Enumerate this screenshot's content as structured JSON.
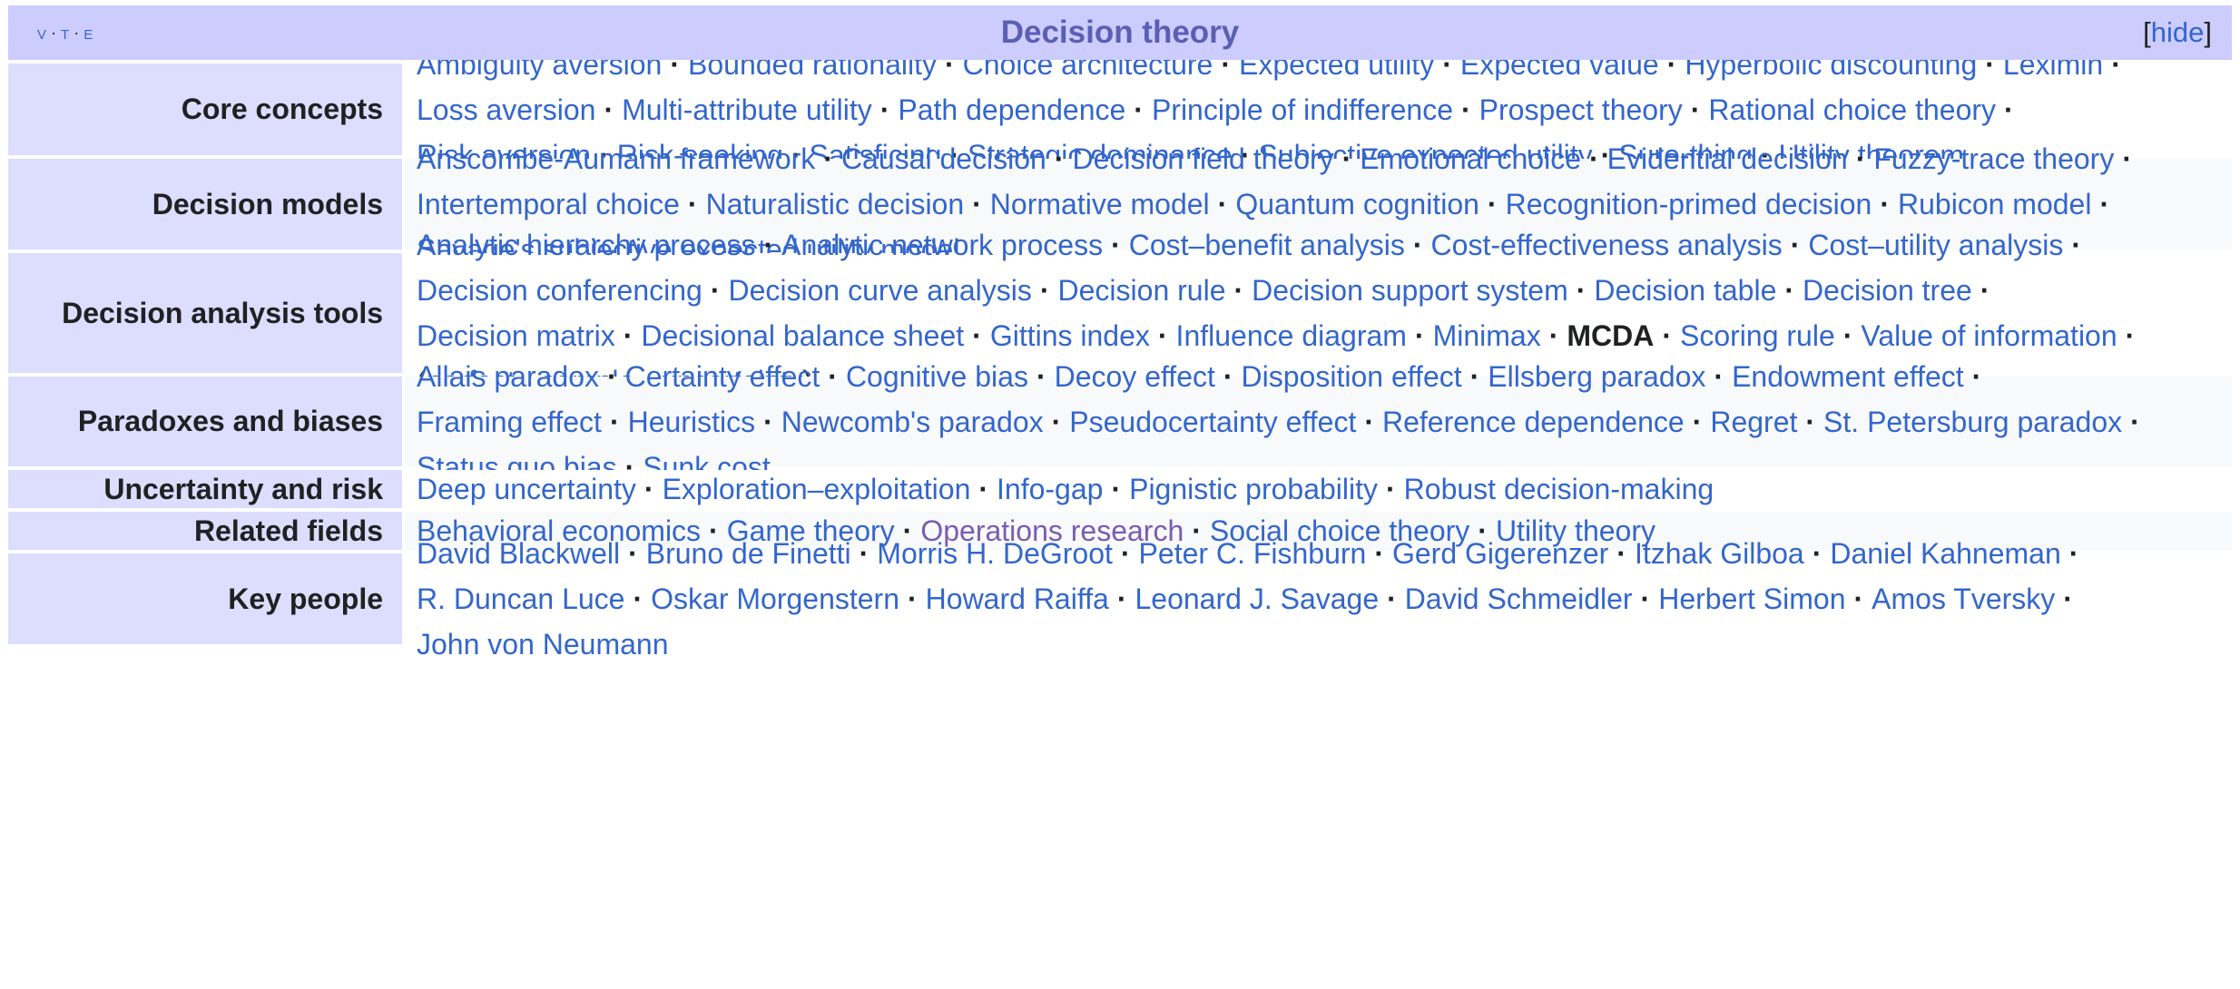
{
  "vte": {
    "v": "v",
    "t": "t",
    "e": "e"
  },
  "title": "Decision theory",
  "hide": {
    "open": "[",
    "label": "hide",
    "close": "]"
  },
  "rows": [
    {
      "group": "Core concepts",
      "lines": [
        [
          "Ambiguity aversion",
          "Bounded rationality",
          "Choice architecture",
          "Expected utility",
          "Expected value",
          "Hyperbolic discounting",
          "Leximin"
        ],
        [
          "Loss aversion",
          "Multi-attribute utility",
          "Path dependence",
          "Principle of indifference",
          "Prospect theory",
          "Rational choice theory"
        ],
        [
          "Risk aversion",
          "Risk-seeking",
          "Satisficing",
          "Strategic dominance",
          "Subjective expected utility",
          "Sure-thing",
          "Utility theorem"
        ]
      ]
    },
    {
      "group": "Decision models",
      "lines": [
        [
          "Anscombe-Aumann framework",
          "Causal decision",
          "Decision field theory",
          "Emotional choice",
          "Evidential decision",
          "Fuzzy-trace theory"
        ],
        [
          "Intertemporal choice",
          "Naturalistic decision",
          "Normative model",
          "Quantum cognition",
          "Recognition-primed decision",
          "Rubicon model"
        ],
        [
          "Savage's subjective expected utility model"
        ]
      ]
    },
    {
      "group": "Decision analysis tools",
      "lines": [
        [
          "Analytic hierarchy process",
          "Analytic network process",
          "Cost–benefit analysis",
          "Cost-effectiveness analysis",
          "Cost–utility analysis"
        ],
        [
          "Decision conferencing",
          "Decision curve analysis",
          "Decision rule",
          "Decision support system",
          "Decision table",
          "Decision tree"
        ],
        [
          "Decision matrix",
          "Decisional balance sheet",
          "Gittins index",
          "Influence diagram",
          "Minimax",
          "MCDA",
          "Scoring rule",
          "Value of information"
        ]
      ],
      "sub": {
        "open": "(",
        "items": [
          "perfect",
          "sample",
          "uncertainty"
        ],
        "close": ")"
      }
    },
    {
      "group": "Paradoxes and biases",
      "lines": [
        [
          "Allais paradox",
          "Certainty effect",
          "Cognitive bias",
          "Decoy effect",
          "Disposition effect",
          "Ellsberg paradox",
          "Endowment effect"
        ],
        [
          "Framing effect",
          "Heuristics",
          "Newcomb's paradox",
          "Pseudocertainty effect",
          "Reference dependence",
          "Regret",
          "St. Petersburg paradox"
        ],
        [
          "Status quo bias",
          "Sunk cost"
        ]
      ]
    },
    {
      "group": "Uncertainty and risk",
      "lines": [
        [
          "Deep uncertainty",
          "Exploration–exploitation",
          "Info-gap",
          "Pignistic probability",
          "Robust decision-making"
        ]
      ]
    },
    {
      "group": "Related fields",
      "lines": [
        [
          "Behavioral economics",
          "Game theory",
          "Operations research",
          "Social choice theory",
          "Utility theory"
        ]
      ]
    },
    {
      "group": "Key people",
      "lines": [
        [
          "David Blackwell",
          "Bruno de Finetti",
          "Morris H. DeGroot",
          "Peter C. Fishburn",
          "Gerd Gigerenzer",
          "Itzhak Gilboa",
          "Daniel Kahneman"
        ],
        [
          "R. Duncan Luce",
          "Oskar Morgenstern",
          "Howard Raiffa",
          "Leonard J. Savage",
          "David Schmeidler",
          "Herbert Simon",
          "Amos Tversky"
        ],
        [
          "John von Neumann"
        ]
      ]
    }
  ],
  "bold_items": [
    "MCDA"
  ],
  "visited_items": [
    "Operations research"
  ],
  "colors": {
    "link": "#3366cc",
    "visited": "#795cb2",
    "title_bg": "#ccccff",
    "group_bg": "#ddddff",
    "title_text": "#5a5fb3"
  }
}
